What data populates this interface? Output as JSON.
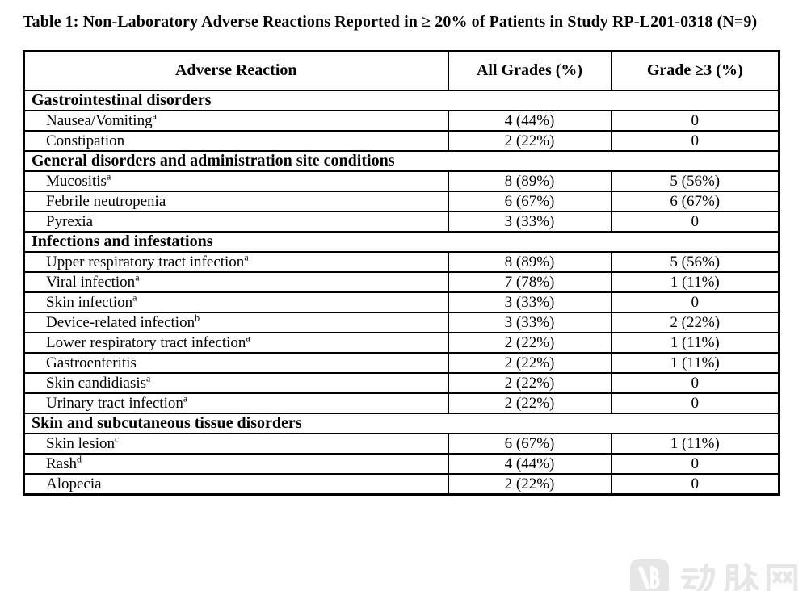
{
  "page": {
    "title": "Table 1: Non-Laboratory Adverse Reactions Reported in ≥ 20% of Patients in Study RP-L201-0318 (N=9)"
  },
  "table": {
    "columns": [
      "Adverse Reaction",
      "All Grades (%)",
      "Grade ≥3 (%)"
    ],
    "sections": [
      {
        "category": "Gastrointestinal disorders",
        "rows": [
          {
            "name": "Nausea/Vomiting",
            "sup": "a",
            "all_grades": "4 (44%)",
            "grade3": "0"
          },
          {
            "name": "Constipation",
            "sup": "",
            "all_grades": "2 (22%)",
            "grade3": "0"
          }
        ]
      },
      {
        "category": "General disorders and administration site conditions",
        "rows": [
          {
            "name": "Mucositis",
            "sup": "a",
            "all_grades": "8 (89%)",
            "grade3": "5 (56%)"
          },
          {
            "name": "Febrile neutropenia",
            "sup": "",
            "all_grades": "6 (67%)",
            "grade3": "6 (67%)"
          },
          {
            "name": "Pyrexia",
            "sup": "",
            "all_grades": "3 (33%)",
            "grade3": "0"
          }
        ]
      },
      {
        "category": "Infections and infestations",
        "rows": [
          {
            "name": "Upper respiratory tract infection",
            "sup": "a",
            "all_grades": "8 (89%)",
            "grade3": "5 (56%)"
          },
          {
            "name": "Viral infection",
            "sup": "a",
            "all_grades": "7 (78%)",
            "grade3": "1 (11%)"
          },
          {
            "name": "Skin infection",
            "sup": "a",
            "all_grades": "3 (33%)",
            "grade3": "0"
          },
          {
            "name": "Device-related infection",
            "sup": "b",
            "all_grades": "3 (33%)",
            "grade3": "2 (22%)"
          },
          {
            "name": "Lower respiratory tract infection",
            "sup": "a",
            "all_grades": "2 (22%)",
            "grade3": "1 (11%)"
          },
          {
            "name": "Gastroenteritis",
            "sup": "",
            "all_grades": "2 (22%)",
            "grade3": "1 (11%)"
          },
          {
            "name": "Skin candidiasis",
            "sup": "a",
            "all_grades": "2 (22%)",
            "grade3": "0"
          },
          {
            "name": "Urinary tract infection",
            "sup": "a",
            "all_grades": "2 (22%)",
            "grade3": "0"
          }
        ]
      },
      {
        "category": "Skin and subcutaneous tissue disorders",
        "rows": [
          {
            "name": "Skin lesion",
            "sup": "c",
            "all_grades": "6 (67%)",
            "grade3": "1 (11%)"
          },
          {
            "name": "Rash",
            "sup": "d",
            "all_grades": "4 (44%)",
            "grade3": "0"
          },
          {
            "name": "Alopecia",
            "sup": "",
            "all_grades": "2 (22%)",
            "grade3": "0"
          }
        ]
      }
    ]
  },
  "watermark": {
    "logo_text": "VB",
    "brand_text": "动脉网",
    "color": "#e6e6e6"
  }
}
